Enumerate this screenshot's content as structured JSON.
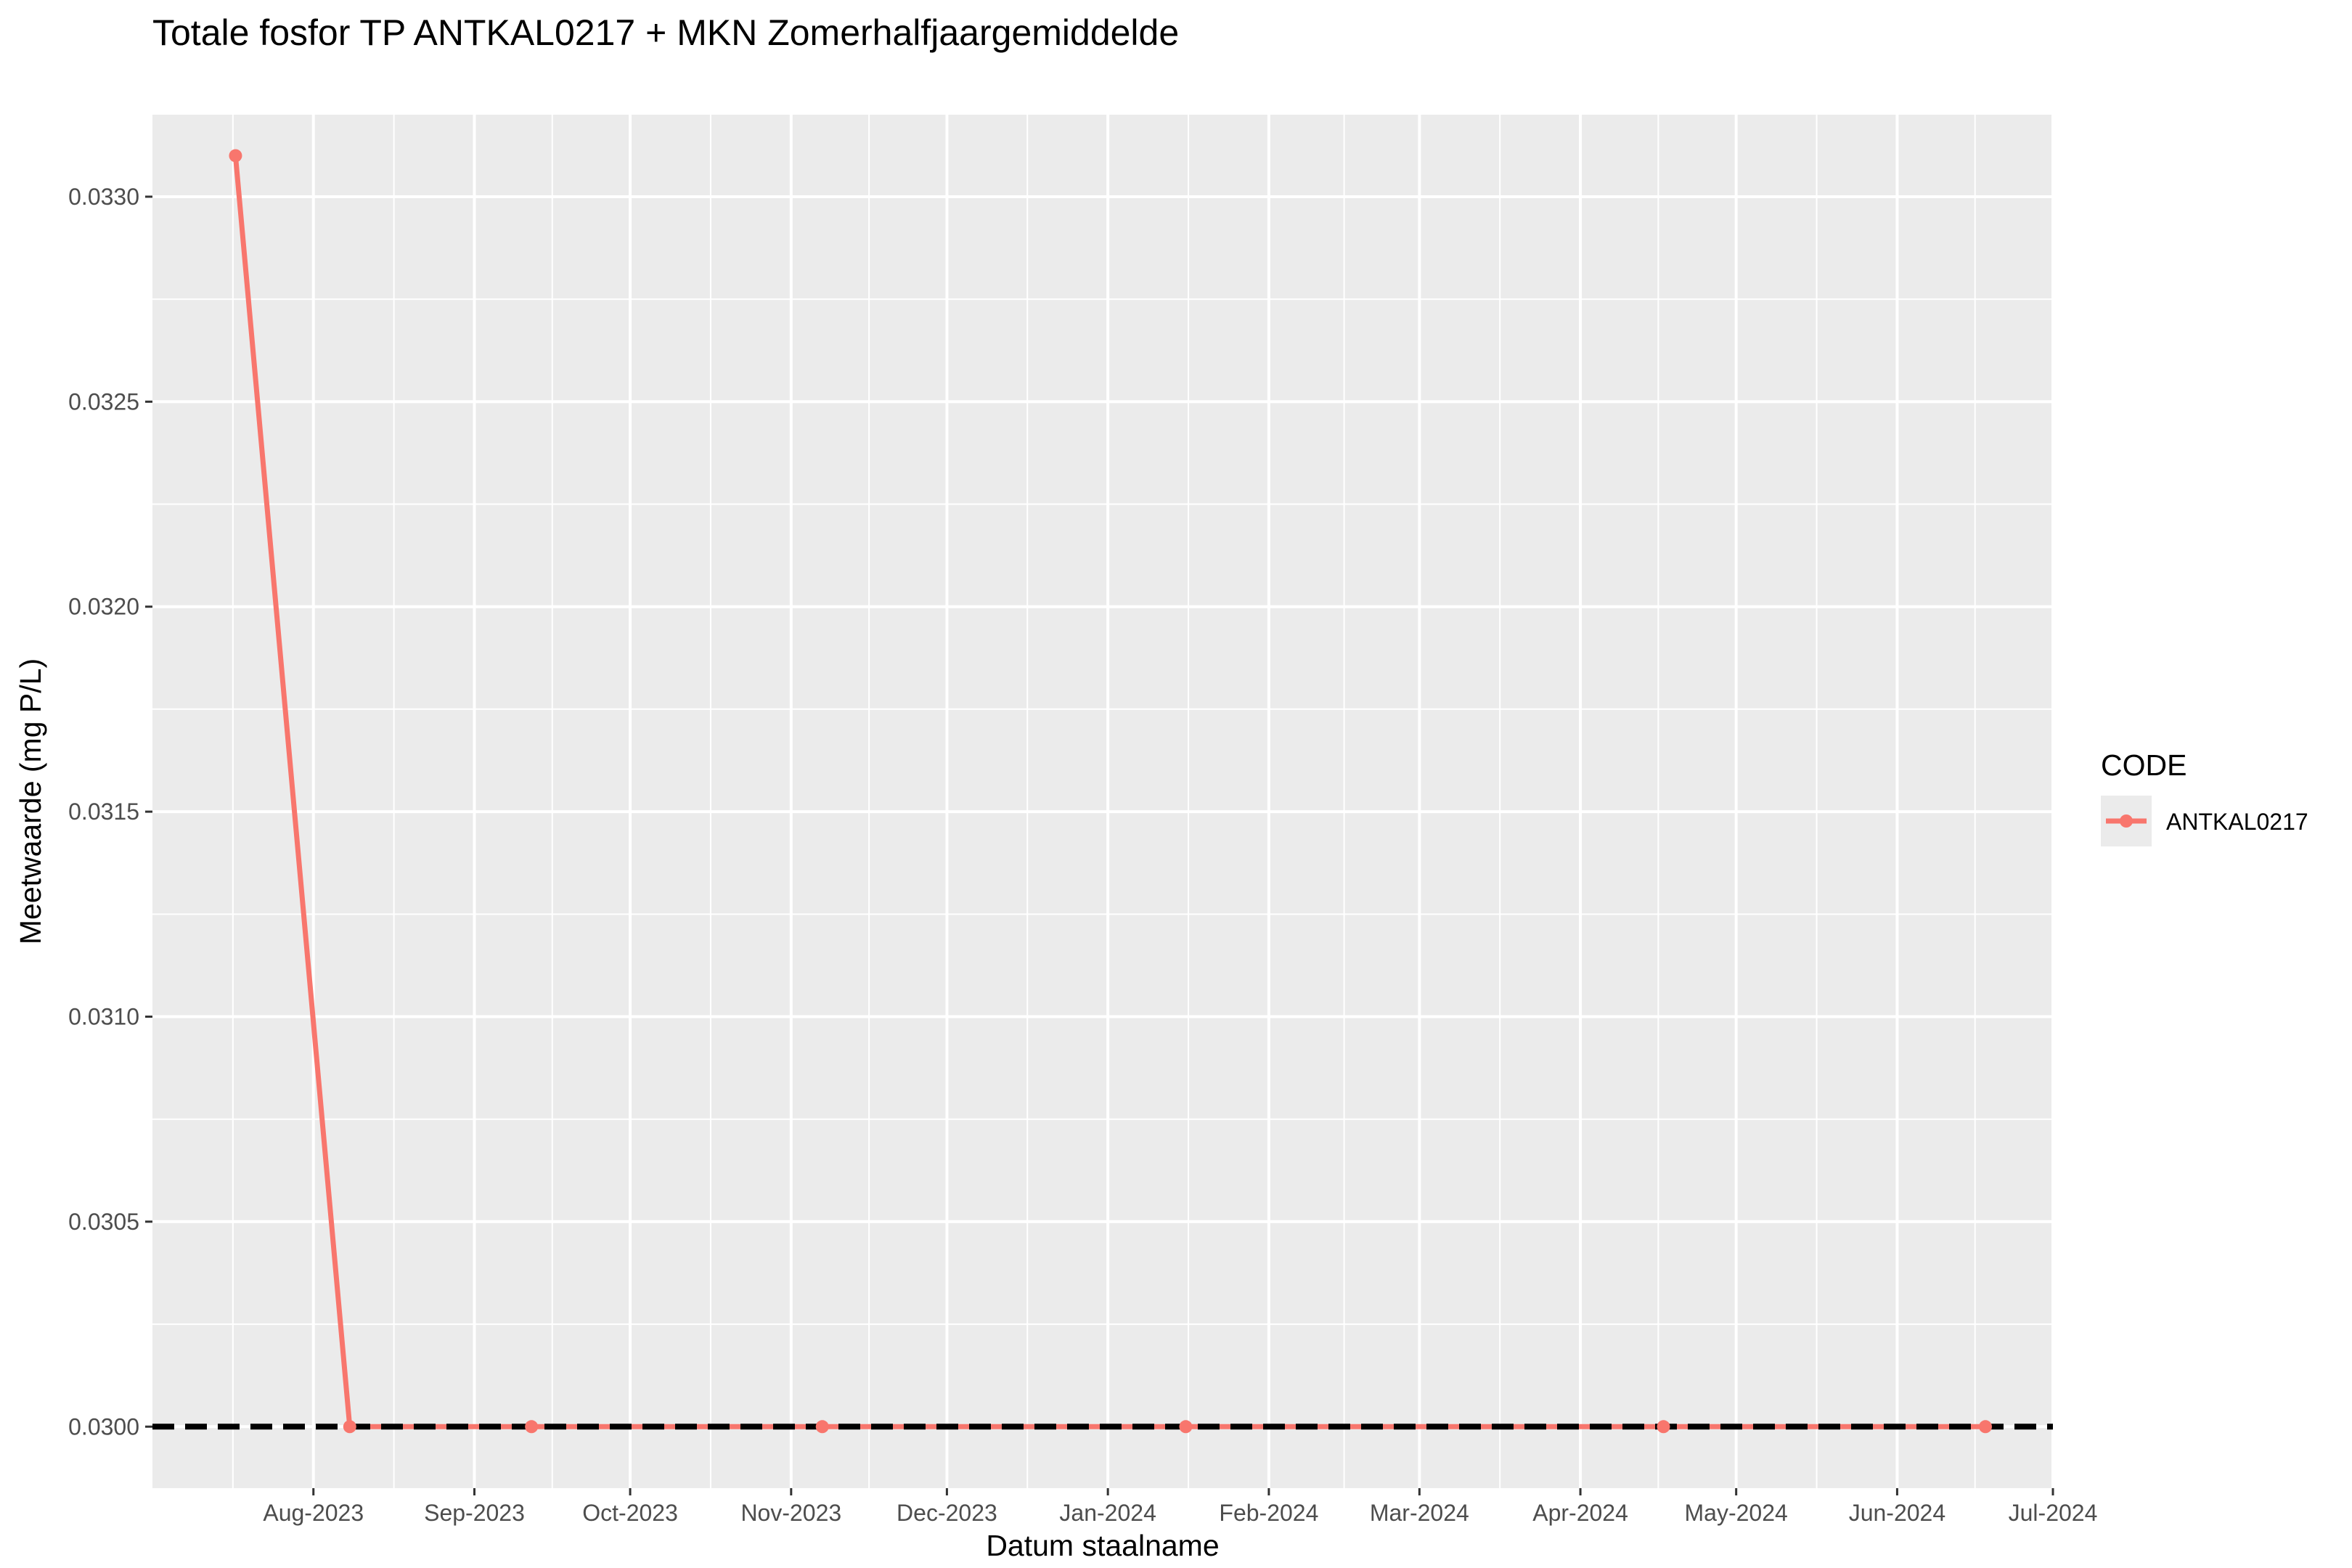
{
  "chart_data": {
    "type": "line",
    "title": "Totale fosfor TP ANTKAL0217 + MKN Zomerhalfjaargemiddelde",
    "xlabel": "Datum staalname",
    "ylabel": "Meetwaarde (mg P/L)",
    "xlim": [
      "2023-07-01",
      "2024-07-01"
    ],
    "ylim": [
      0.02985,
      0.0332
    ],
    "x_ticks": [
      {
        "date": "2023-08-01",
        "label": "Aug-2023"
      },
      {
        "date": "2023-09-01",
        "label": "Sep-2023"
      },
      {
        "date": "2023-10-01",
        "label": "Oct-2023"
      },
      {
        "date": "2023-11-01",
        "label": "Nov-2023"
      },
      {
        "date": "2023-12-01",
        "label": "Dec-2023"
      },
      {
        "date": "2024-01-01",
        "label": "Jan-2024"
      },
      {
        "date": "2024-02-01",
        "label": "Feb-2024"
      },
      {
        "date": "2024-03-01",
        "label": "Mar-2024"
      },
      {
        "date": "2024-04-01",
        "label": "Apr-2024"
      },
      {
        "date": "2024-05-01",
        "label": "May-2024"
      },
      {
        "date": "2024-06-01",
        "label": "Jun-2024"
      },
      {
        "date": "2024-07-01",
        "label": "Jul-2024"
      }
    ],
    "y_ticks": [
      {
        "value": 0.03,
        "label": "0.0300"
      },
      {
        "value": 0.0305,
        "label": "0.0305"
      },
      {
        "value": 0.031,
        "label": "0.0310"
      },
      {
        "value": 0.0315,
        "label": "0.0315"
      },
      {
        "value": 0.032,
        "label": "0.0320"
      },
      {
        "value": 0.0325,
        "label": "0.0325"
      },
      {
        "value": 0.033,
        "label": "0.0330"
      }
    ],
    "series": [
      {
        "name": "ANTKAL0217",
        "color": "#F8766D",
        "points": [
          {
            "x": "2023-07-17",
            "y": 0.0331
          },
          {
            "x": "2023-08-08",
            "y": 0.03
          },
          {
            "x": "2023-09-12",
            "y": 0.03
          },
          {
            "x": "2023-11-07",
            "y": 0.03
          },
          {
            "x": "2024-01-16",
            "y": 0.03
          },
          {
            "x": "2024-04-17",
            "y": 0.03
          },
          {
            "x": "2024-06-18",
            "y": 0.03
          }
        ]
      }
    ],
    "reference_line": {
      "y": 0.03,
      "style": "dashed",
      "color": "#000000"
    },
    "legend": {
      "title": "CODE",
      "position": "right"
    },
    "grid": true,
    "panel_background": "#EBEBEB"
  }
}
